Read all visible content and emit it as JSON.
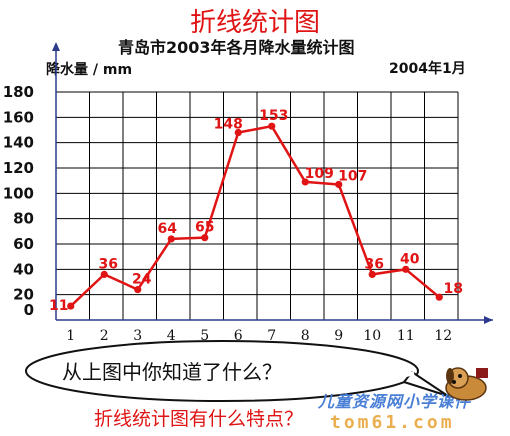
{
  "page": {
    "title": "折线统计图",
    "bubble_question": "从上图中你知道了什么？",
    "bottom_question": "折线统计图有什么特点？"
  },
  "watermark": {
    "text": "儿童资源网小学课件",
    "domain": "tom61.com"
  },
  "colors": {
    "title": "#e01414",
    "line": "#e01414",
    "grid": "#000000",
    "axis": "#2b3a8c"
  },
  "chart_data": {
    "type": "line",
    "title": "青岛市2003年各月降水量统计图",
    "ylabel": "降水量 / mm",
    "date_note": "2004年1月",
    "categories": [
      "1",
      "2",
      "3",
      "4",
      "5",
      "6",
      "7",
      "8",
      "9",
      "10",
      "11",
      "12"
    ],
    "values": [
      11,
      36,
      24,
      64,
      65,
      148,
      153,
      109,
      107,
      36,
      40,
      18
    ],
    "yticks": [
      "0",
      "20",
      "40",
      "60",
      "80",
      "100",
      "120",
      "140",
      "160",
      "180"
    ],
    "ylim": [
      0,
      180
    ],
    "grid": true,
    "legend": "none"
  }
}
